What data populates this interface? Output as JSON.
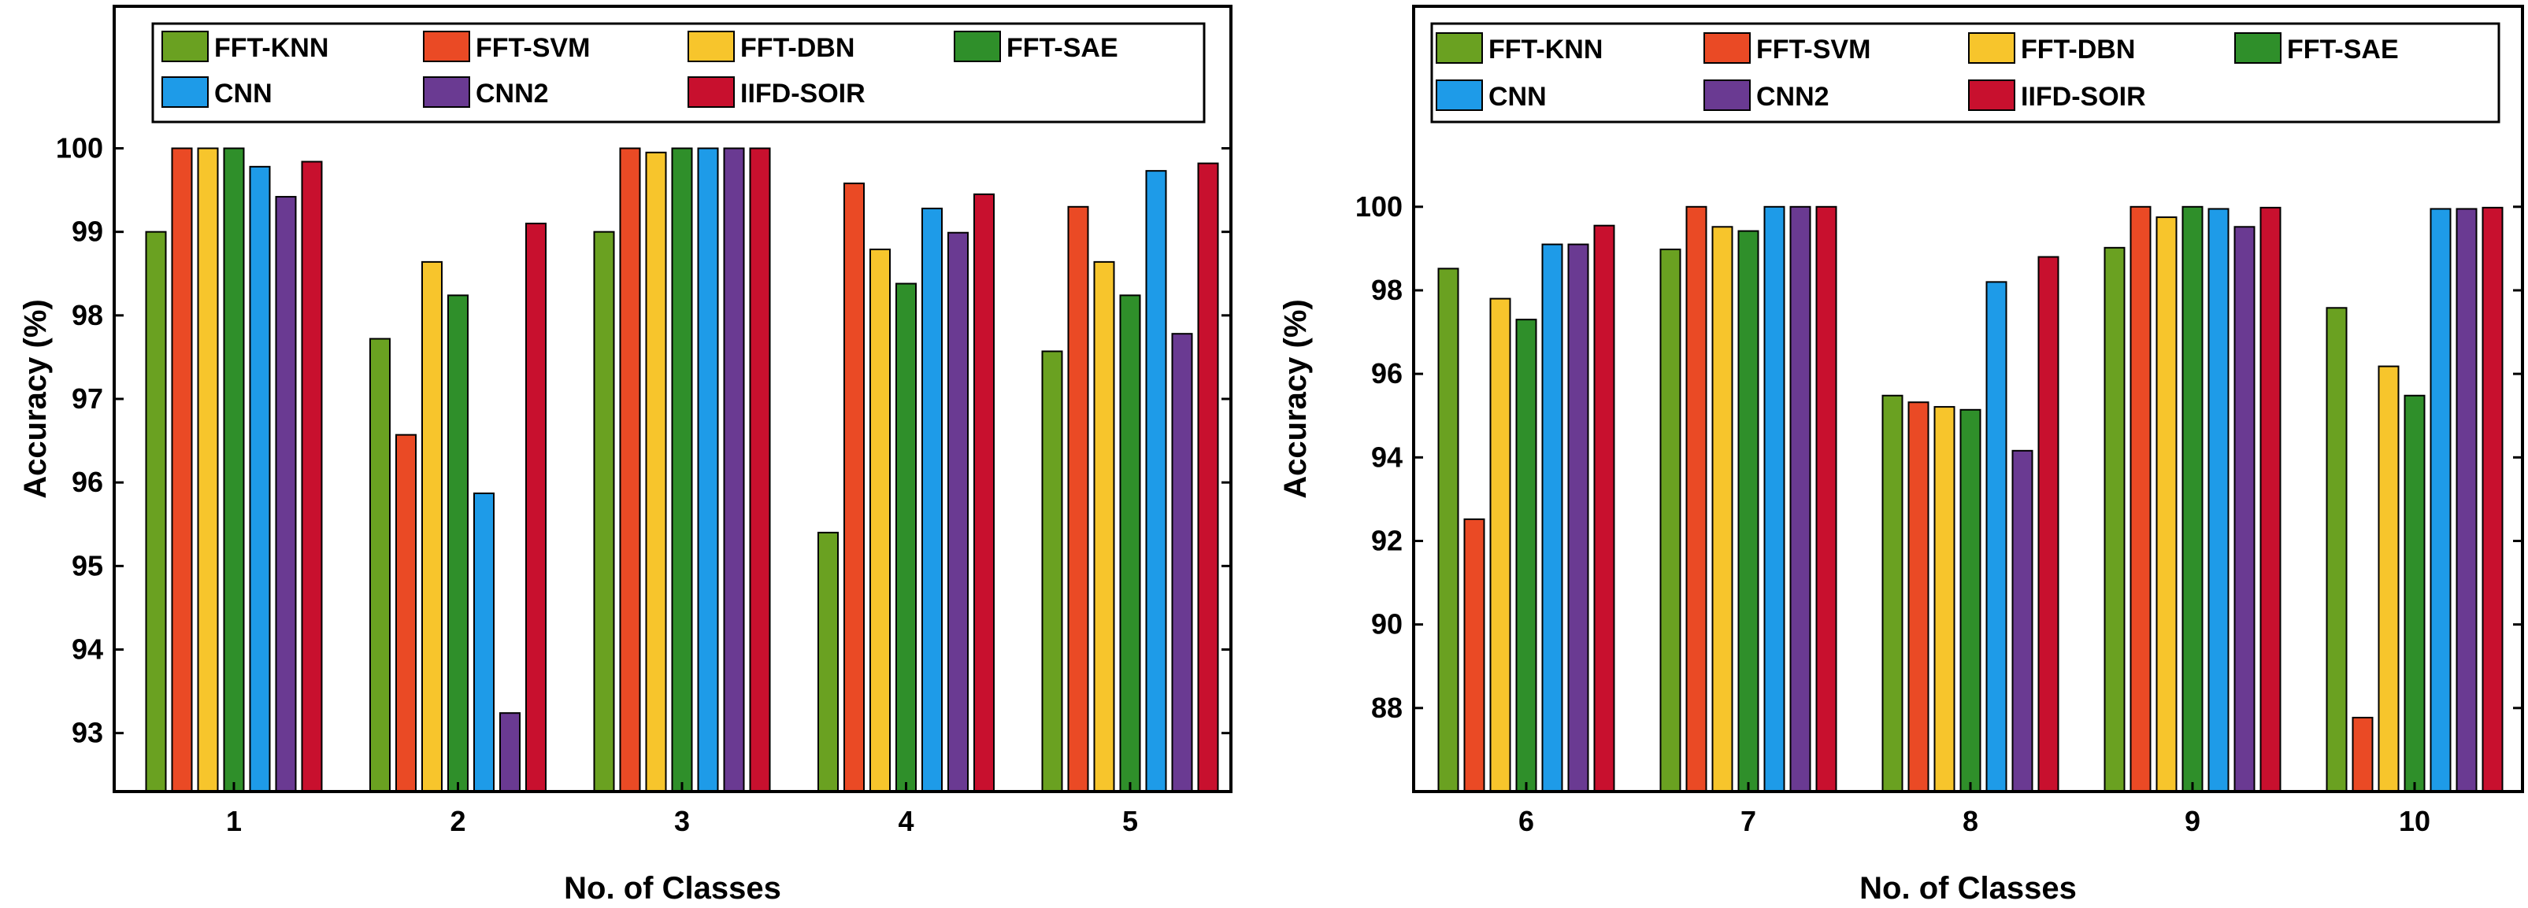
{
  "colors": {
    "FFT-KNN": "#6aa121",
    "FFT-SVM": "#ea4a25",
    "FFT-DBN": "#f7c52c",
    "FFT-SAE": "#2f8f2a",
    "CNN": "#1e9be8",
    "CNN2": "#6a3a92",
    "IIFD-SOIR": "#c8102e"
  },
  "chart_data": [
    {
      "type": "bar",
      "title": "",
      "xlabel": "No. of Classes",
      "ylabel": "Accuracy (%)",
      "ylim": [
        92.3,
        101.7
      ],
      "yticks": [
        93,
        94,
        95,
        96,
        97,
        98,
        99,
        100
      ],
      "categories": [
        "1",
        "2",
        "3",
        "4",
        "5"
      ],
      "legend_position": "top",
      "series": [
        {
          "name": "FFT-KNN",
          "values": [
            99.0,
            97.72,
            99.0,
            95.4,
            97.57
          ]
        },
        {
          "name": "FFT-SVM",
          "values": [
            100.0,
            96.57,
            100.0,
            99.58,
            99.3
          ]
        },
        {
          "name": "FFT-DBN",
          "values": [
            100.0,
            98.64,
            99.95,
            98.79,
            98.64
          ]
        },
        {
          "name": "FFT-SAE",
          "values": [
            100.0,
            98.24,
            100.0,
            98.38,
            98.24
          ]
        },
        {
          "name": "CNN",
          "values": [
            99.78,
            95.87,
            100.0,
            99.28,
            99.73
          ]
        },
        {
          "name": "CNN2",
          "values": [
            99.42,
            93.24,
            100.0,
            98.99,
            97.78
          ]
        },
        {
          "name": "IIFD-SOIR",
          "values": [
            99.84,
            99.1,
            100.0,
            99.45,
            99.82
          ]
        }
      ]
    },
    {
      "type": "bar",
      "title": "",
      "xlabel": "No. of Classes",
      "ylabel": "Accuracy (%)",
      "ylim": [
        86.0,
        104.8
      ],
      "yticks": [
        88,
        90,
        92,
        94,
        96,
        98,
        100
      ],
      "categories": [
        "6",
        "7",
        "8",
        "9",
        "10"
      ],
      "legend_position": "top",
      "series": [
        {
          "name": "FFT-KNN",
          "values": [
            98.52,
            98.98,
            95.48,
            99.02,
            97.58
          ]
        },
        {
          "name": "FFT-SVM",
          "values": [
            92.52,
            100.0,
            95.32,
            100.0,
            87.77
          ]
        },
        {
          "name": "FFT-DBN",
          "values": [
            97.8,
            99.52,
            95.21,
            99.75,
            96.18
          ]
        },
        {
          "name": "FFT-SAE",
          "values": [
            97.3,
            99.42,
            95.14,
            100.0,
            95.48
          ]
        },
        {
          "name": "CNN",
          "values": [
            99.1,
            100.0,
            98.2,
            99.95,
            99.95
          ]
        },
        {
          "name": "CNN2",
          "values": [
            99.1,
            100.0,
            94.16,
            99.52,
            99.95
          ]
        },
        {
          "name": "IIFD-SOIR",
          "values": [
            99.55,
            100.0,
            98.8,
            99.98,
            99.98
          ]
        }
      ]
    }
  ]
}
